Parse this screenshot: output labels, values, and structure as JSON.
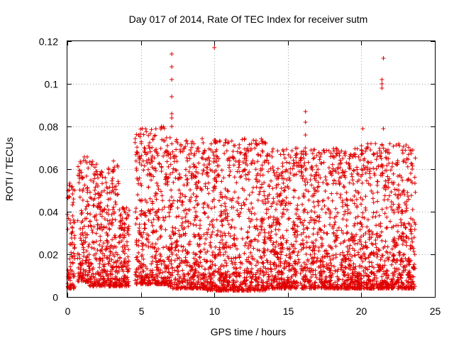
{
  "chart_data": {
    "type": "scatter",
    "title": "Day 017 of 2014, Rate Of TEC Index for receiver sutm",
    "xlabel": "GPS time / hours",
    "ylabel": "ROTI / TECUs",
    "xlim": [
      0,
      25
    ],
    "ylim": [
      0,
      0.12
    ],
    "x_ticks": [
      "0",
      "5",
      "10",
      "15",
      "20",
      "25"
    ],
    "x_tick_values": [
      0,
      5,
      10,
      15,
      20,
      25
    ],
    "y_ticks": [
      "0",
      "0.02",
      "0.04",
      "0.06",
      "0.08",
      "0.1",
      "0.12"
    ],
    "y_tick_values": [
      0,
      0.02,
      0.04,
      0.06,
      0.08,
      0.1,
      0.12
    ],
    "grid": true,
    "marker": "plus",
    "marker_color": "#e00000",
    "series": [
      {
        "name": "ROTI",
        "values_estimated_envelope": [
          {
            "x_start": 0.0,
            "x_end": 0.5,
            "min": 0.004,
            "max": 0.055
          },
          {
            "x_start": 0.7,
            "x_end": 1.5,
            "min": 0.007,
            "max": 0.066
          },
          {
            "x_start": 1.5,
            "x_end": 3.5,
            "min": 0.005,
            "max": 0.064
          },
          {
            "x_start": 3.5,
            "x_end": 4.2,
            "min": 0.005,
            "max": 0.042
          },
          {
            "x_start": 4.6,
            "x_end": 6.8,
            "min": 0.006,
            "max": 0.08
          },
          {
            "x_start": 6.8,
            "x_end": 9.5,
            "min": 0.004,
            "max": 0.075
          },
          {
            "x_start": 9.5,
            "x_end": 13.5,
            "min": 0.003,
            "max": 0.075
          },
          {
            "x_start": 13.5,
            "x_end": 16.0,
            "min": 0.004,
            "max": 0.07
          },
          {
            "x_start": 16.0,
            "x_end": 20.0,
            "min": 0.004,
            "max": 0.07
          },
          {
            "x_start": 20.0,
            "x_end": 23.7,
            "min": 0.004,
            "max": 0.072
          }
        ],
        "notable_points": [
          {
            "x": 7.1,
            "y": 0.114
          },
          {
            "x": 7.1,
            "y": 0.108
          },
          {
            "x": 7.1,
            "y": 0.102
          },
          {
            "x": 7.1,
            "y": 0.094
          },
          {
            "x": 7.1,
            "y": 0.086
          },
          {
            "x": 7.1,
            "y": 0.084
          },
          {
            "x": 7.1,
            "y": 0.08
          },
          {
            "x": 10.0,
            "y": 0.117
          },
          {
            "x": 16.2,
            "y": 0.087
          },
          {
            "x": 16.2,
            "y": 0.082
          },
          {
            "x": 16.2,
            "y": 0.076
          },
          {
            "x": 21.5,
            "y": 0.112
          },
          {
            "x": 21.4,
            "y": 0.102
          },
          {
            "x": 21.4,
            "y": 0.1
          },
          {
            "x": 21.4,
            "y": 0.098
          },
          {
            "x": 5.1,
            "y": 0.079
          },
          {
            "x": 20.1,
            "y": 0.079
          },
          {
            "x": 21.5,
            "y": 0.079
          }
        ]
      }
    ],
    "gaps_hours": [
      [
        0.5,
        0.7
      ],
      [
        4.2,
        4.6
      ]
    ],
    "data_range_hours": [
      0,
      23.7
    ]
  }
}
